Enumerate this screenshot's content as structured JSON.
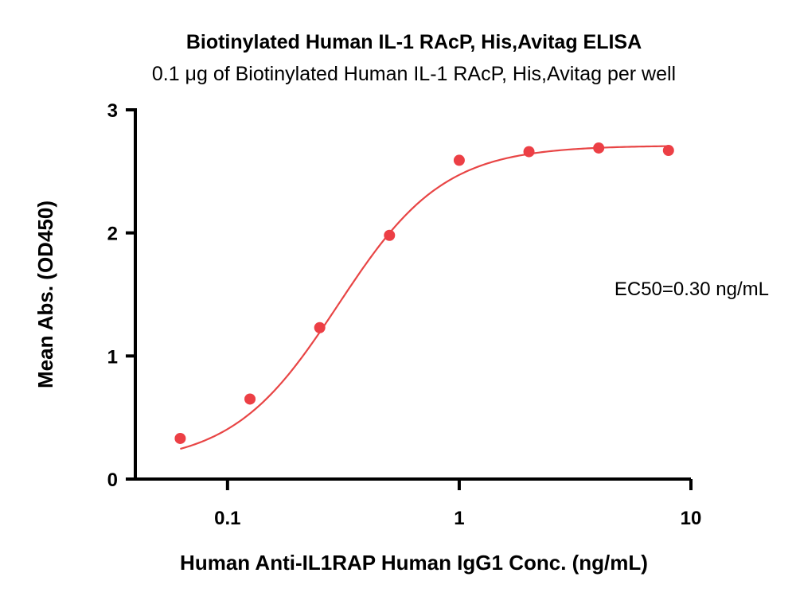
{
  "chart_data": {
    "type": "scatter",
    "title": "Biotinylated Human IL-1 RAcP, His,Avitag ELISA",
    "subtitle": "0.1 μg of Biotinylated Human IL-1 RAcP, His,Avitag per well",
    "xlabel": "Human Anti-IL1RAP Human IgG1 Conc. (ng/mL)",
    "ylabel": "Mean Abs. (OD450)",
    "x_scale": "log",
    "xlim": [
      0.04,
      10
    ],
    "ylim": [
      0,
      3
    ],
    "x_ticks": [
      0.1,
      1,
      10
    ],
    "x_tick_labels": [
      "0.1",
      "1",
      "10"
    ],
    "y_ticks": [
      0,
      1,
      2,
      3
    ],
    "y_tick_labels": [
      "0",
      "1",
      "2",
      "3"
    ],
    "grid": false,
    "annotation": "EC50=0.30 ng/mL",
    "colors": {
      "series": "#ec3f45",
      "curve": "#e84545"
    },
    "series": [
      {
        "x": [
          0.0625,
          0.125,
          0.25,
          0.5,
          1,
          2,
          4,
          8
        ],
        "y": [
          0.33,
          0.65,
          1.23,
          1.98,
          2.59,
          2.66,
          2.69,
          2.67
        ]
      }
    ],
    "fit": {
      "model": "4PL",
      "bottom": 0.12,
      "top": 2.71,
      "ec50": 0.3,
      "hill": 1.9
    }
  }
}
